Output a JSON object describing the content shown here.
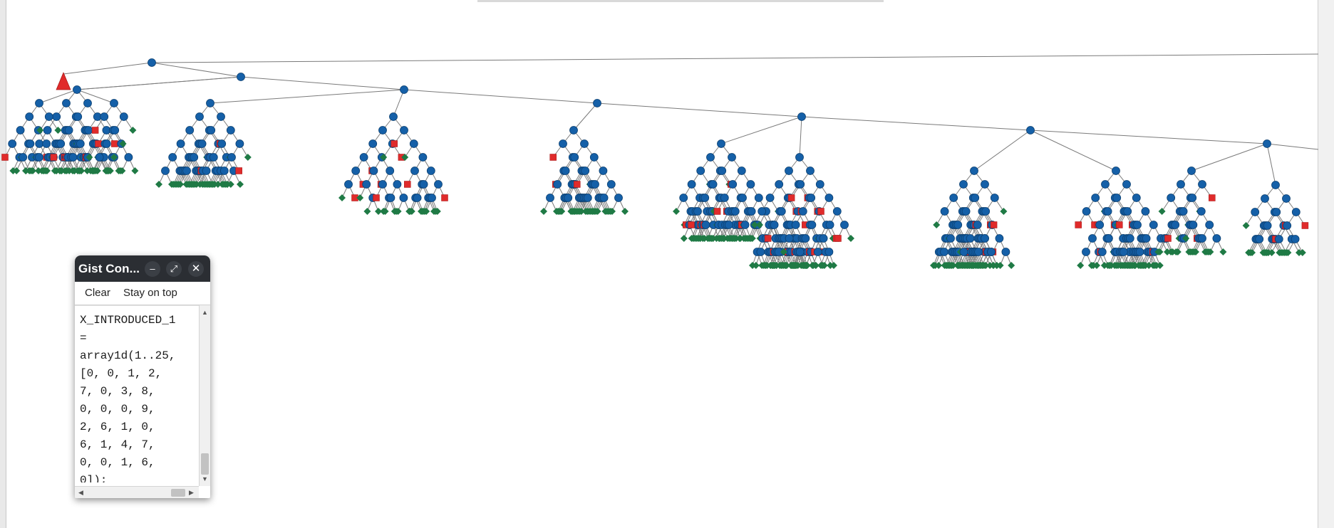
{
  "search_tree": {
    "node_legend": {
      "branch": "circle",
      "solution": "diamond",
      "failure": "square",
      "unexplored": "triangle"
    },
    "colors": {
      "branch": "#1560a8",
      "solution": "#1f7a45",
      "failure": "#e02b2b",
      "unexplored": "#e02b2b",
      "edge": "#7a7a7a"
    }
  },
  "console": {
    "title": "Gist Con...",
    "controls": {
      "minimize": "–",
      "maximize": "⤢",
      "close": "✕"
    },
    "toolbar": {
      "clear_label": "Clear",
      "stay_on_top_label": "Stay on top"
    },
    "output_text": "X_INTRODUCED_1\n=\narray1d(1..25,\n[0, 0, 1, 2,\n7, 0, 3, 8,\n0, 0, 0, 9,\n2, 6, 1, 0,\n6, 1, 4, 7,\n0, 0, 1, 6,\n0]);",
    "scrollbars": {
      "up_arrow": "▲",
      "down_arrow": "▼",
      "left_arrow": "◀",
      "right_arrow": "▶"
    }
  }
}
